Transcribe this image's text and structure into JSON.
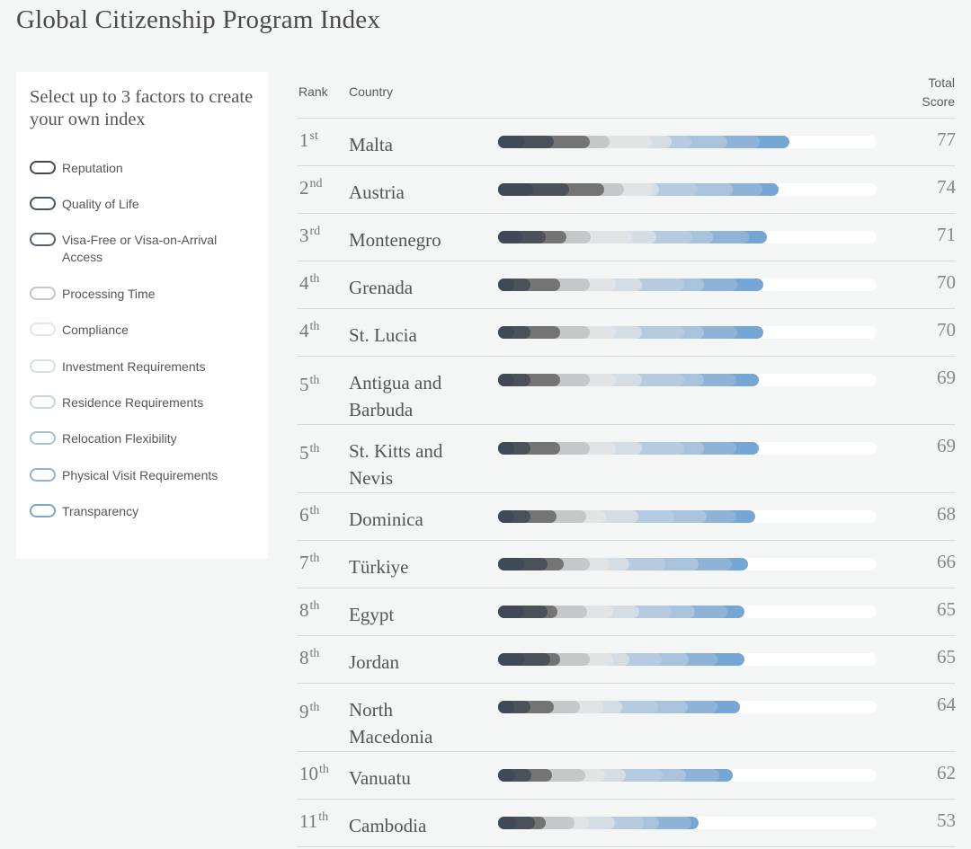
{
  "title": "Global Citizenship Program Index",
  "sidebar": {
    "heading": "Select up to 3 factors to create your own index",
    "factors": [
      {
        "label": "Reputation",
        "border": "#3f4a56"
      },
      {
        "label": "Quality of Life",
        "border": "#4a545e"
      },
      {
        "label": "Visa-Free or Visa-on-Arrival Access",
        "border": "#58616a"
      },
      {
        "label": "Processing Time",
        "border": "#c3c7ca"
      },
      {
        "label": "Compliance",
        "border": "#e2e5e7"
      },
      {
        "label": "Investment Requirements",
        "border": "#d8dde2"
      },
      {
        "label": "Residence Requirements",
        "border": "#c9d6e2"
      },
      {
        "label": "Relocation Flexibility",
        "border": "#a9c1d8"
      },
      {
        "label": "Physical Visit Requirements",
        "border": "#8cb2d4"
      },
      {
        "label": "Transparency",
        "border": "#7aa6cf"
      }
    ]
  },
  "table": {
    "col_rank": "Rank",
    "col_country": "Country",
    "col_score_line1": "Total",
    "col_score_line2": "Score",
    "max_score": 100,
    "segment_colors": [
      "#3f4a56",
      "#4b5159",
      "#747474",
      "#c5c7c9",
      "#e1e3e5",
      "#d5dde4",
      "#b6cbdf",
      "#a9c3dc",
      "#8fb3d6",
      "#76a6d3"
    ],
    "rows": [
      {
        "rank_num": "1",
        "rank_suffix": "st",
        "country": "Malta",
        "score": "77",
        "parts": [
          8,
          9,
          11,
          6,
          13,
          6,
          6,
          11,
          10,
          9
        ]
      },
      {
        "rank_num": "2",
        "rank_suffix": "nd",
        "country": "Austria",
        "score": "74",
        "parts": [
          11,
          11,
          11,
          6,
          9,
          2,
          12,
          11,
          9,
          5
        ]
      },
      {
        "rank_num": "3",
        "rank_suffix": "rd",
        "country": "Montenegro",
        "score": "71",
        "parts": [
          8,
          8,
          7,
          8,
          14,
          8,
          12,
          7,
          12,
          6
        ]
      },
      {
        "rank_num": "4",
        "rank_suffix": "th",
        "country": "Grenada",
        "score": "70",
        "parts": [
          5,
          5,
          9,
          9,
          8,
          8,
          13,
          6,
          10,
          8
        ]
      },
      {
        "rank_num": "4",
        "rank_suffix": "th",
        "country": "St. Lucia",
        "score": "70",
        "parts": [
          5,
          5,
          9,
          9,
          8,
          8,
          13,
          6,
          10,
          8
        ]
      },
      {
        "rank_num": "5",
        "rank_suffix": "th",
        "country": "Antigua and Barbuda",
        "score": "69",
        "parts": [
          5,
          5,
          9,
          9,
          8,
          8,
          13,
          6,
          10,
          7
        ]
      },
      {
        "rank_num": "5",
        "rank_suffix": "th",
        "country": "St. Kitts and Nevis",
        "score": "69",
        "parts": [
          5,
          5,
          9,
          9,
          8,
          8,
          13,
          6,
          10,
          7
        ]
      },
      {
        "rank_num": "6",
        "rank_suffix": "th",
        "country": "Dominica",
        "score": "68",
        "parts": [
          5,
          5,
          8,
          9,
          6,
          10,
          11,
          10,
          9,
          6
        ]
      },
      {
        "rank_num": "7",
        "rank_suffix": "th",
        "country": "Türkiye",
        "score": "66",
        "parts": [
          8,
          7,
          5,
          8,
          6,
          6,
          11,
          10,
          10,
          5
        ]
      },
      {
        "rank_num": "8",
        "rank_suffix": "th",
        "country": "Egypt",
        "score": "65",
        "parts": [
          8,
          7,
          3,
          9,
          8,
          8,
          10,
          7,
          10,
          5
        ]
      },
      {
        "rank_num": "8",
        "rank_suffix": "th",
        "country": "Jordan",
        "score": "65",
        "parts": [
          8,
          8,
          3,
          9,
          7,
          5,
          10,
          8,
          9,
          8
        ]
      },
      {
        "rank_num": "9",
        "rank_suffix": "th",
        "country": "North Macedonia",
        "score": "64",
        "parts": [
          5,
          5,
          7,
          8,
          7,
          6,
          11,
          9,
          9,
          7
        ]
      },
      {
        "rank_num": "10",
        "rank_suffix": "th",
        "country": "Vanuatu",
        "score": "62",
        "parts": [
          5,
          5,
          6,
          10,
          6,
          6,
          11,
          7,
          10,
          4
        ]
      },
      {
        "rank_num": "11",
        "rank_suffix": "th",
        "country": "Cambodia",
        "score": "53",
        "parts": [
          5,
          5,
          3,
          8,
          4,
          7,
          8,
          4,
          9,
          2
        ]
      }
    ]
  }
}
